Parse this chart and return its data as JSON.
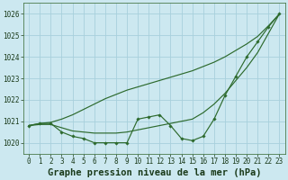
{
  "x": [
    0,
    1,
    2,
    3,
    4,
    5,
    6,
    7,
    8,
    9,
    10,
    11,
    12,
    13,
    14,
    15,
    16,
    17,
    18,
    19,
    20,
    21,
    22,
    23
  ],
  "line1": [
    1020.8,
    1020.9,
    1020.9,
    1020.5,
    1020.3,
    1020.2,
    1020.0,
    1020.0,
    1020.0,
    1020.0,
    1021.1,
    1021.2,
    1021.3,
    1020.8,
    1020.2,
    1020.1,
    1020.3,
    1021.1,
    1022.2,
    1023.1,
    1024.0,
    1024.7,
    1025.4,
    1026.0
  ],
  "line2": [
    1020.8,
    1020.85,
    1020.85,
    1020.7,
    1020.55,
    1020.5,
    1020.45,
    1020.45,
    1020.45,
    1020.5,
    1020.6,
    1020.7,
    1020.8,
    1020.9,
    1021.0,
    1021.1,
    1021.4,
    1021.8,
    1022.3,
    1022.9,
    1023.5,
    1024.2,
    1025.1,
    1026.0
  ],
  "line3": [
    1020.8,
    1020.9,
    1020.95,
    1021.1,
    1021.3,
    1021.55,
    1021.8,
    1022.05,
    1022.25,
    1022.45,
    1022.6,
    1022.75,
    1022.9,
    1023.05,
    1023.2,
    1023.35,
    1023.55,
    1023.75,
    1024.0,
    1024.3,
    1024.6,
    1024.95,
    1025.45,
    1026.0
  ],
  "line_color": "#2d6a2d",
  "bg_color": "#cce8f0",
  "grid_color": "#a8d0dc",
  "xlabel": "Graphe pression niveau de la mer (hPa)",
  "ylim": [
    1019.5,
    1026.5
  ],
  "xlim": [
    -0.5,
    23.5
  ],
  "yticks": [
    1020,
    1021,
    1022,
    1023,
    1024,
    1025,
    1026
  ],
  "xticks": [
    0,
    1,
    2,
    3,
    4,
    5,
    6,
    7,
    8,
    9,
    10,
    11,
    12,
    13,
    14,
    15,
    16,
    17,
    18,
    19,
    20,
    21,
    22,
    23
  ],
  "tick_fontsize": 5.5,
  "xlabel_fontsize": 7.5
}
